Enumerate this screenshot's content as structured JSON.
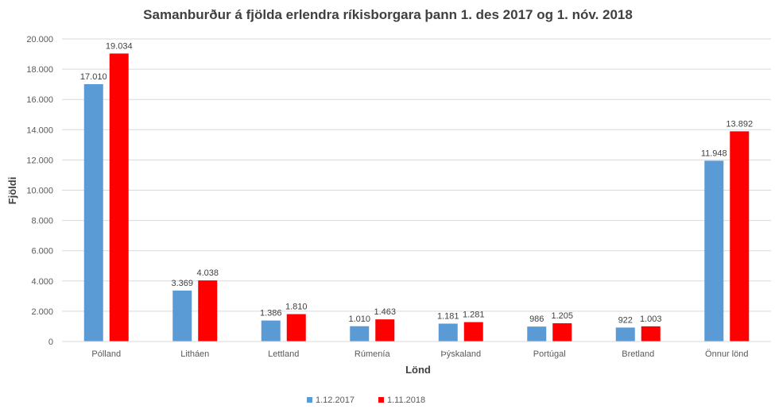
{
  "chart_data": {
    "type": "bar",
    "title": "Samanburður á fjölda erlendra ríkisborgara þann 1. des 2017 og 1. nóv. 2018",
    "xlabel": "Lönd",
    "ylabel": "Fjöldi",
    "categories": [
      "Pólland",
      "Litháen",
      "Lettland",
      "Rúmenía",
      "Þýskaland",
      "Portúgal",
      "Bretland",
      "Önnur lönd"
    ],
    "series": [
      {
        "name": "1.12.2017",
        "color": "#5B9BD5",
        "values": [
          17010,
          3369,
          1386,
          1010,
          1181,
          986,
          922,
          11948
        ],
        "labels": [
          "17.010",
          "3.369",
          "1.386",
          "1.010",
          "1.181",
          "986",
          "922",
          "11.948"
        ]
      },
      {
        "name": "1.11.2018",
        "color": "#FF0000",
        "values": [
          19034,
          4038,
          1810,
          1463,
          1281,
          1205,
          1003,
          13892
        ],
        "labels": [
          "19.034",
          "4.038",
          "1.810",
          "1.463",
          "1.281",
          "1.205",
          "1.003",
          "13.892"
        ]
      }
    ],
    "ylim": [
      0,
      20000
    ],
    "yticks": [
      0,
      2000,
      4000,
      6000,
      8000,
      10000,
      12000,
      14000,
      16000,
      18000,
      20000
    ],
    "ytick_labels": [
      "0",
      "2.000",
      "4.000",
      "6.000",
      "8.000",
      "10.000",
      "12.000",
      "14.000",
      "16.000",
      "18.000",
      "20.000"
    ],
    "grid": true,
    "legend_position": "bottom"
  }
}
